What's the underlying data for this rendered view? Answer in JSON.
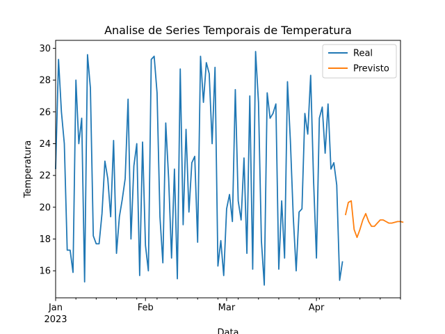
{
  "chart_data": {
    "type": "line",
    "title": "Analise de Series Temporais de Temperatura",
    "xlabel": "Data",
    "ylabel": "Temperatura",
    "x_start": "2023-01-01",
    "xlim": [
      "2023-01-01",
      "2023-04-30"
    ],
    "ylim": [
      14.3,
      30.5
    ],
    "y_ticks": [
      16,
      18,
      20,
      22,
      24,
      26,
      28,
      30
    ],
    "x_major_ticks": [
      {
        "date": "2023-01-01",
        "label": "Jan",
        "sublabel": "2023"
      },
      {
        "date": "2023-02-01",
        "label": "Feb",
        "sublabel": ""
      },
      {
        "date": "2023-03-01",
        "label": "Mar",
        "sublabel": ""
      },
      {
        "date": "2023-04-01",
        "label": "Apr",
        "sublabel": ""
      }
    ],
    "x_minor_ticks": [
      "2023-01-08",
      "2023-01-15",
      "2023-01-22",
      "2023-01-29",
      "2023-02-05",
      "2023-02-12",
      "2023-02-19",
      "2023-02-26",
      "2023-03-05",
      "2023-03-12",
      "2023-03-19",
      "2023-03-26",
      "2023-04-02",
      "2023-04-09",
      "2023-04-16",
      "2023-04-23",
      "2023-04-30"
    ],
    "grid": false,
    "legend_position": "top-right",
    "series": [
      {
        "name": "Real",
        "color": "#1f77b4",
        "start": "2023-01-01",
        "values": [
          22.4,
          29.3,
          26.0,
          24.0,
          17.3,
          17.3,
          15.9,
          28.0,
          24.0,
          25.6,
          15.3,
          29.6,
          27.5,
          18.2,
          17.7,
          17.7,
          19.6,
          22.9,
          21.8,
          19.4,
          24.2,
          17.1,
          19.4,
          20.5,
          21.8,
          26.8,
          18.0,
          22.6,
          24.0,
          15.7,
          24.1,
          17.6,
          16.0,
          29.3,
          29.5,
          27.2,
          19.4,
          16.5,
          25.3,
          21.8,
          16.8,
          22.4,
          15.5,
          28.7,
          18.9,
          24.9,
          19.7,
          22.8,
          23.2,
          17.8,
          29.5,
          26.6,
          29.1,
          28.4,
          24.0,
          28.8,
          16.3,
          17.9,
          15.7,
          19.9,
          20.8,
          19.1,
          27.4,
          20.4,
          19.2,
          23.1,
          17.1,
          27.0,
          16.1,
          29.8,
          26.6,
          17.9,
          15.1,
          27.2,
          25.6,
          25.9,
          26.5,
          16.1,
          20.4,
          16.8,
          27.9,
          24.2,
          19.4,
          16.0,
          19.7,
          19.9,
          25.9,
          24.6,
          28.3,
          21.7,
          16.8,
          25.6,
          26.3,
          23.4,
          26.5,
          22.4,
          22.8,
          21.4,
          15.4,
          16.6
        ]
      },
      {
        "name": "Previsto",
        "color": "#ff7f0e",
        "start": "2023-04-11",
        "values": [
          19.5,
          20.3,
          20.4,
          18.6,
          18.1,
          18.6,
          19.2,
          19.6,
          19.1,
          18.8,
          18.8,
          19.0,
          19.2,
          19.2,
          19.1,
          19.0,
          19.0,
          19.05,
          19.1,
          19.1,
          19.05
        ]
      }
    ]
  }
}
